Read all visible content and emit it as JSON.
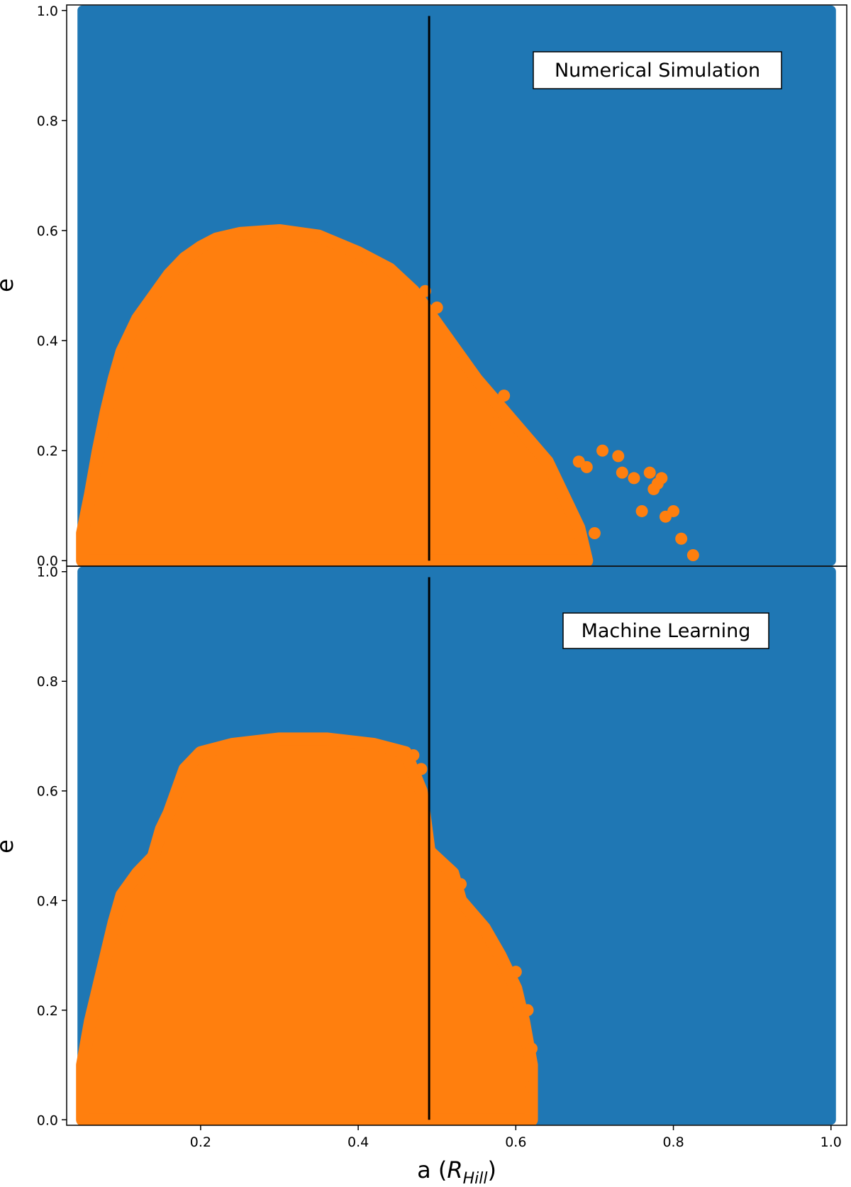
{
  "colors": {
    "stable": "#1f77b4",
    "unstable": "#ff7f0e",
    "line": "#000000"
  },
  "chart_data": [
    {
      "type": "scatter",
      "panel": "top",
      "annotation": "Numerical Simulation",
      "xlim": [
        0.03,
        1.02
      ],
      "ylim": [
        -0.01,
        1.01
      ],
      "ylabel": "e",
      "xlabel": "",
      "yticks": [
        "0.0",
        "0.2",
        "0.4",
        "0.6",
        "0.8",
        "1.0"
      ],
      "xticks": [],
      "vline_x": 0.49,
      "stable_region": {
        "x": [
          0.05,
          1.0
        ],
        "y": [
          0.0,
          1.0
        ]
      },
      "unstable_envelope": [
        [
          0.05,
          0.0
        ],
        [
          0.05,
          0.05
        ],
        [
          0.06,
          0.12
        ],
        [
          0.07,
          0.2
        ],
        [
          0.08,
          0.27
        ],
        [
          0.09,
          0.33
        ],
        [
          0.1,
          0.38
        ],
        [
          0.12,
          0.44
        ],
        [
          0.14,
          0.48
        ],
        [
          0.16,
          0.52
        ],
        [
          0.18,
          0.55
        ],
        [
          0.2,
          0.57
        ],
        [
          0.22,
          0.585
        ],
        [
          0.25,
          0.595
        ],
        [
          0.3,
          0.6
        ],
        [
          0.35,
          0.59
        ],
        [
          0.4,
          0.56
        ],
        [
          0.44,
          0.53
        ],
        [
          0.47,
          0.49
        ],
        [
          0.49,
          0.45
        ],
        [
          0.52,
          0.39
        ],
        [
          0.55,
          0.33
        ],
        [
          0.58,
          0.28
        ],
        [
          0.61,
          0.23
        ],
        [
          0.64,
          0.18
        ],
        [
          0.66,
          0.12
        ],
        [
          0.68,
          0.06
        ],
        [
          0.69,
          0.0
        ]
      ],
      "unstable_scatter": [
        [
          0.485,
          0.49
        ],
        [
          0.5,
          0.46
        ],
        [
          0.53,
          0.36
        ],
        [
          0.555,
          0.3
        ],
        [
          0.575,
          0.25
        ],
        [
          0.585,
          0.3
        ],
        [
          0.68,
          0.18
        ],
        [
          0.69,
          0.17
        ],
        [
          0.7,
          0.05
        ],
        [
          0.71,
          0.2
        ],
        [
          0.73,
          0.19
        ],
        [
          0.735,
          0.16
        ],
        [
          0.75,
          0.15
        ],
        [
          0.76,
          0.09
        ],
        [
          0.77,
          0.16
        ],
        [
          0.775,
          0.13
        ],
        [
          0.78,
          0.14
        ],
        [
          0.785,
          0.15
        ],
        [
          0.79,
          0.08
        ],
        [
          0.8,
          0.09
        ],
        [
          0.81,
          0.04
        ],
        [
          0.825,
          0.01
        ]
      ]
    },
    {
      "type": "scatter",
      "panel": "bottom",
      "annotation": "Machine Learning",
      "xlim": [
        0.03,
        1.02
      ],
      "ylim": [
        -0.01,
        1.01
      ],
      "ylabel": "e",
      "xlabel": "a (R_Hill)",
      "xlabel_main": "a (",
      "xlabel_symbol": "R",
      "xlabel_sub": "Hill",
      "xlabel_close": ")",
      "yticks": [
        "0.0",
        "0.2",
        "0.4",
        "0.6",
        "0.8",
        "1.0"
      ],
      "xticks": [
        "0.2",
        "0.4",
        "0.6",
        "0.8",
        "1.0"
      ],
      "vline_x": 0.49,
      "stable_region": {
        "x": [
          0.05,
          1.0
        ],
        "y": [
          0.0,
          1.0
        ]
      },
      "unstable_envelope": [
        [
          0.05,
          0.0
        ],
        [
          0.05,
          0.1
        ],
        [
          0.06,
          0.18
        ],
        [
          0.07,
          0.24
        ],
        [
          0.08,
          0.3
        ],
        [
          0.09,
          0.36
        ],
        [
          0.1,
          0.41
        ],
        [
          0.12,
          0.45
        ],
        [
          0.14,
          0.48
        ],
        [
          0.15,
          0.53
        ],
        [
          0.16,
          0.56
        ],
        [
          0.17,
          0.6
        ],
        [
          0.18,
          0.64
        ],
        [
          0.2,
          0.67
        ],
        [
          0.24,
          0.685
        ],
        [
          0.3,
          0.695
        ],
        [
          0.36,
          0.695
        ],
        [
          0.42,
          0.685
        ],
        [
          0.46,
          0.67
        ],
        [
          0.48,
          0.6
        ],
        [
          0.49,
          0.49
        ],
        [
          0.52,
          0.45
        ],
        [
          0.53,
          0.4
        ],
        [
          0.56,
          0.35
        ],
        [
          0.58,
          0.3
        ],
        [
          0.6,
          0.24
        ],
        [
          0.61,
          0.18
        ],
        [
          0.62,
          0.1
        ],
        [
          0.62,
          0.0
        ]
      ],
      "unstable_scatter": [
        [
          0.47,
          0.665
        ],
        [
          0.48,
          0.64
        ],
        [
          0.46,
          0.6
        ],
        [
          0.53,
          0.43
        ],
        [
          0.55,
          0.35
        ],
        [
          0.6,
          0.27
        ],
        [
          0.615,
          0.2
        ],
        [
          0.62,
          0.13
        ],
        [
          0.62,
          0.06
        ]
      ]
    }
  ]
}
